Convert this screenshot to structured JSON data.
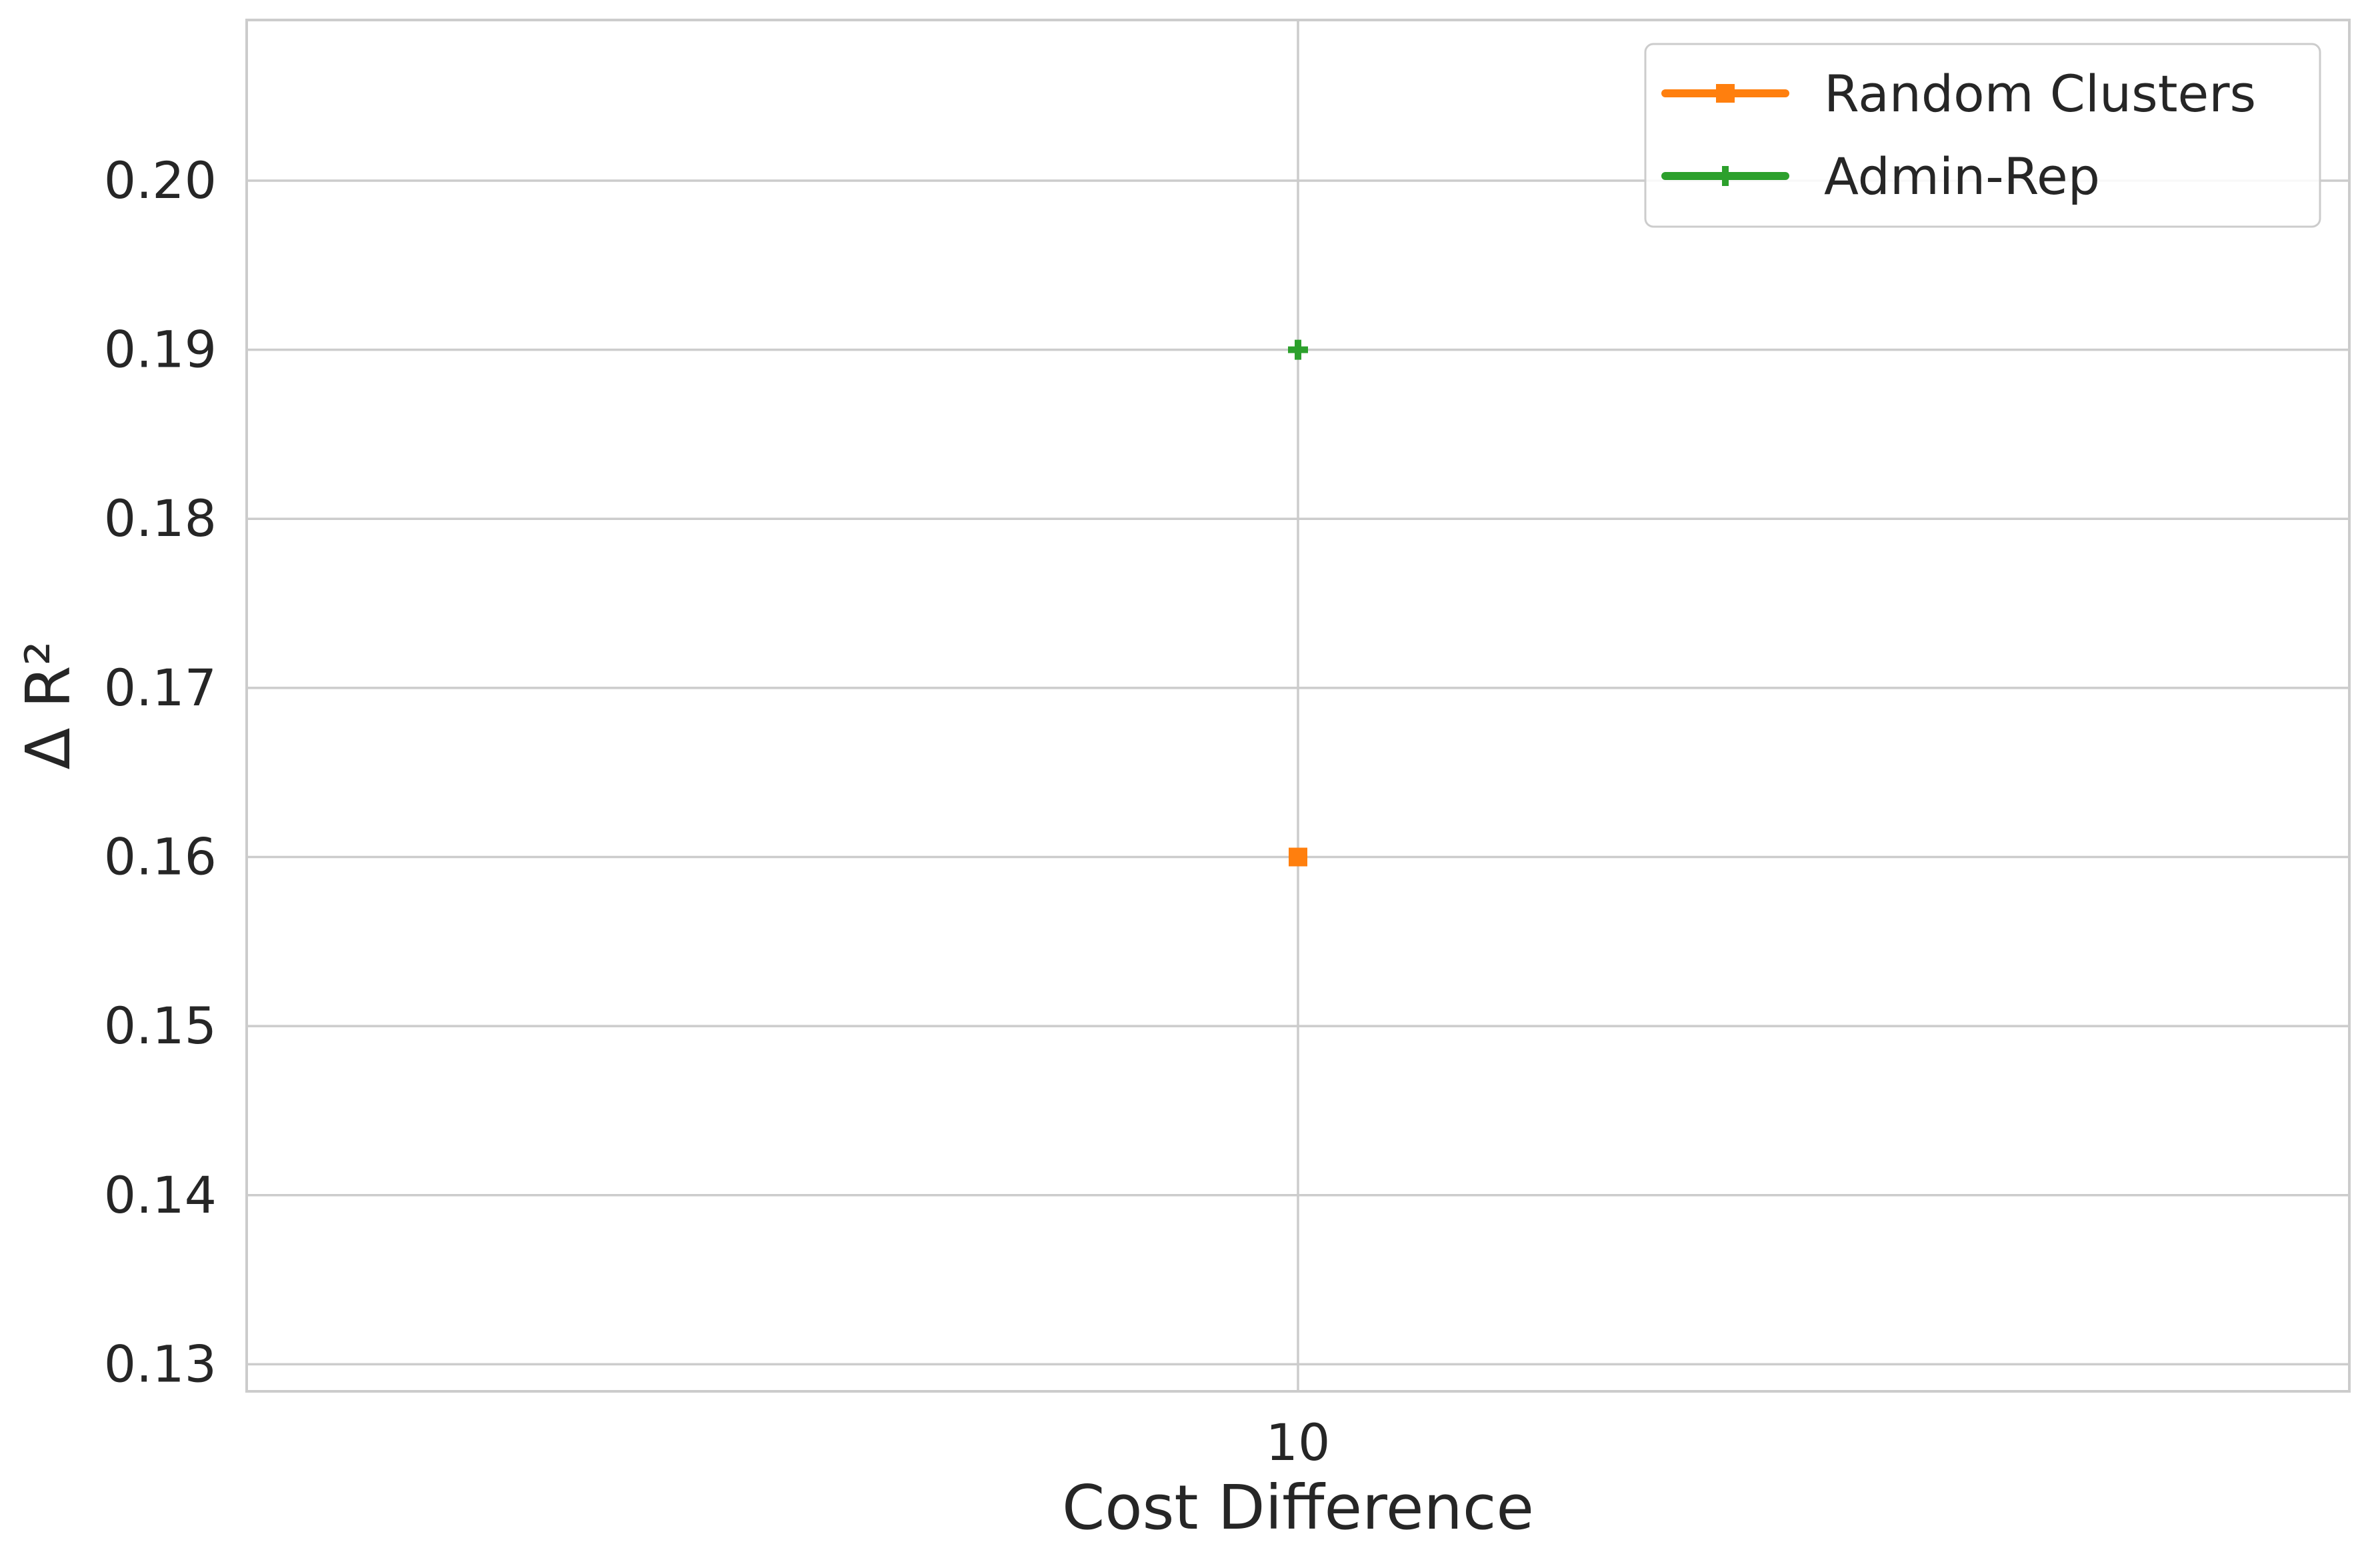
{
  "chart_data": {
    "type": "line",
    "title": "",
    "xlabel": "Cost Difference",
    "ylabel": "Δ R²",
    "x": [
      10
    ],
    "x_tick_labels": [
      "10"
    ],
    "ylim": [
      0.1284,
      0.2095
    ],
    "y_ticks": [
      0.13,
      0.14,
      0.15,
      0.16,
      0.17,
      0.18,
      0.19,
      0.2
    ],
    "y_tick_labels": [
      "0.13",
      "0.14",
      "0.15",
      "0.16",
      "0.17",
      "0.18",
      "0.19",
      "0.20"
    ],
    "grid": true,
    "legend_position": "top-right",
    "series": [
      {
        "name": "Random Clusters",
        "values": [
          0.16
        ],
        "color": "#ff7f0e",
        "marker": "square"
      },
      {
        "name": "Admin-Rep",
        "values": [
          0.19
        ],
        "color": "#2ca02c",
        "marker": "plus"
      }
    ]
  }
}
